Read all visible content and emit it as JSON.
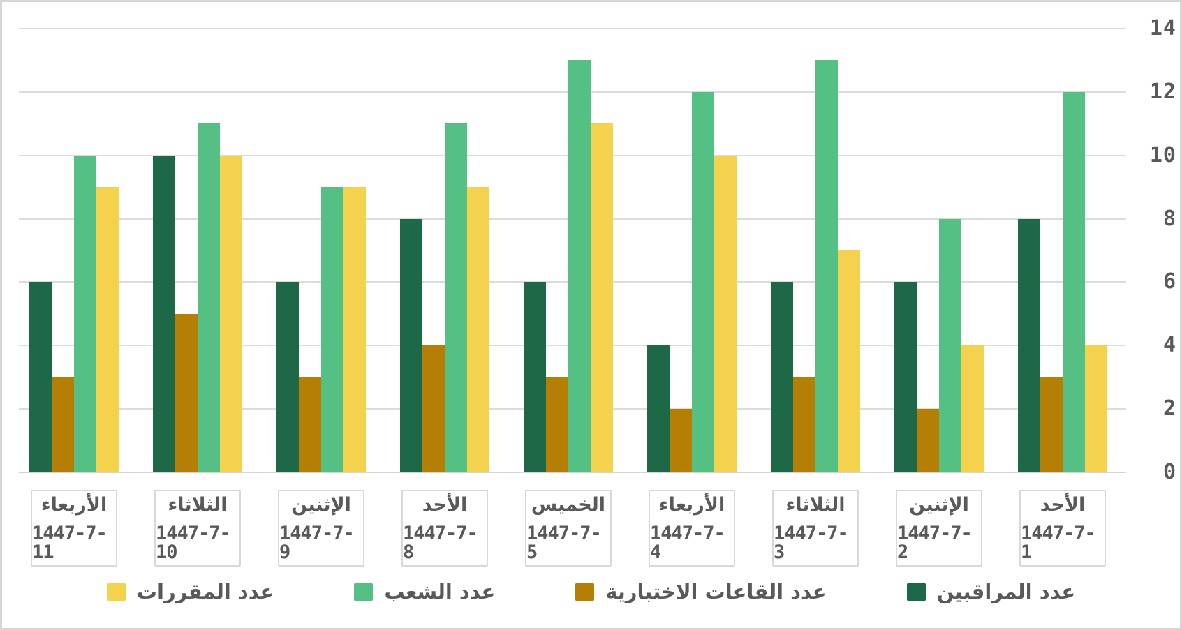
{
  "chart_data": {
    "type": "bar",
    "title": "",
    "xlabel": "",
    "ylabel": "",
    "rtl_display": true,
    "ylim": [
      0,
      14
    ],
    "ytick_step": 2,
    "grid": true,
    "legend_position": "bottom",
    "y_axis_side": "right",
    "y_tick_labels": [
      "0",
      "2",
      "4",
      "6",
      "8",
      "10",
      "12",
      "14"
    ],
    "categories": [
      {
        "day": "الأربعاء",
        "date": "1447-7-11"
      },
      {
        "day": "الثلاثاء",
        "date": "1447-7-10"
      },
      {
        "day": "الإثنين",
        "date": "1447-7-9"
      },
      {
        "day": "الأحد",
        "date": "1447-7-8"
      },
      {
        "day": "الخميس",
        "date": "1447-7-5"
      },
      {
        "day": "الأربعاء",
        "date": "1447-7-4"
      },
      {
        "day": "الثلاثاء",
        "date": "1447-7-3"
      },
      {
        "day": "الإثنين",
        "date": "1447-7-2"
      },
      {
        "day": "الأحد",
        "date": "1447-7-1"
      }
    ],
    "series": [
      {
        "name": "عدد المراقبين",
        "color": "#1d6847",
        "values": [
          6,
          10,
          6,
          8,
          6,
          4,
          6,
          6,
          8
        ]
      },
      {
        "name": "عدد القاعات الاختبارية",
        "color": "#b57f05",
        "values": [
          3,
          5,
          3,
          4,
          3,
          2,
          3,
          2,
          3
        ]
      },
      {
        "name": "عدد الشعب",
        "color": "#55c083",
        "values": [
          10,
          11,
          9,
          11,
          13,
          12,
          13,
          8,
          12
        ]
      },
      {
        "name": "عدد المقررات",
        "color": "#f5d24e",
        "values": [
          9,
          10,
          9,
          9,
          11,
          10,
          7,
          4,
          4
        ]
      }
    ]
  },
  "legend": {
    "items": [
      {
        "label": "عدد المقررات",
        "color": "#f5d24e"
      },
      {
        "label": "عدد الشعب",
        "color": "#55c083"
      },
      {
        "label": "عدد القاعات الاختبارية",
        "color": "#b57f05"
      },
      {
        "label": "عدد المراقبين",
        "color": "#1d6847"
      }
    ]
  },
  "colors": {
    "grid": "#dcdcdc",
    "text": "#595959",
    "border": "#d5d5d5",
    "background": "#ffffff"
  }
}
